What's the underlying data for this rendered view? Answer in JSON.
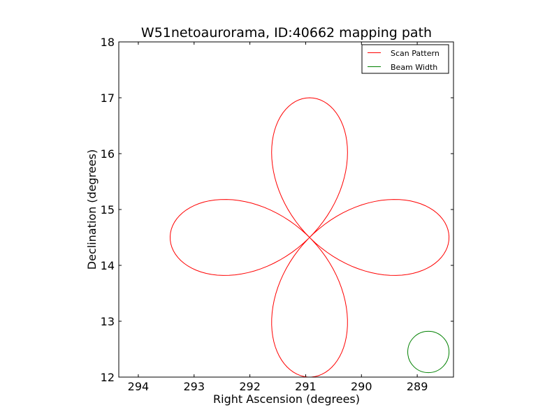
{
  "chart_data": {
    "type": "line",
    "title": "W51netoaurorama, ID:40662 mapping path",
    "xlabel": "Right Ascension (degrees)",
    "ylabel": "Declination (degrees)",
    "xlim": [
      294.35,
      288.35
    ],
    "ylim": [
      12,
      18
    ],
    "x_inverted": true,
    "xticks": [
      294,
      293,
      292,
      291,
      290,
      289
    ],
    "xtick_labels": [
      "294",
      "293",
      "292",
      "291",
      "290",
      "289"
    ],
    "yticks": [
      12,
      13,
      14,
      15,
      16,
      17,
      18
    ],
    "ytick_labels": [
      "12",
      "13",
      "14",
      "15",
      "16",
      "17",
      "18"
    ],
    "grid": false,
    "legend_position": "top-right",
    "legend": [
      "Scan Pattern",
      "Beam Width"
    ],
    "center": {
      "ra": 290.93,
      "dec": 14.5
    },
    "series": [
      {
        "name": "Scan Pattern",
        "color": "#ff0000",
        "pattern": "four-petal rose (daisy)",
        "petal_extent_deg": 2.5,
        "start": {
          "ra": 293.55,
          "dec": 14.35
        },
        "end": {
          "ra": 293.6,
          "dec": 14.5
        }
      },
      {
        "name": "Beam Width",
        "color": "#008000",
        "shape": "circle",
        "center": {
          "ra": 288.8,
          "dec": 12.45
        },
        "radius_deg": 0.37
      }
    ]
  }
}
